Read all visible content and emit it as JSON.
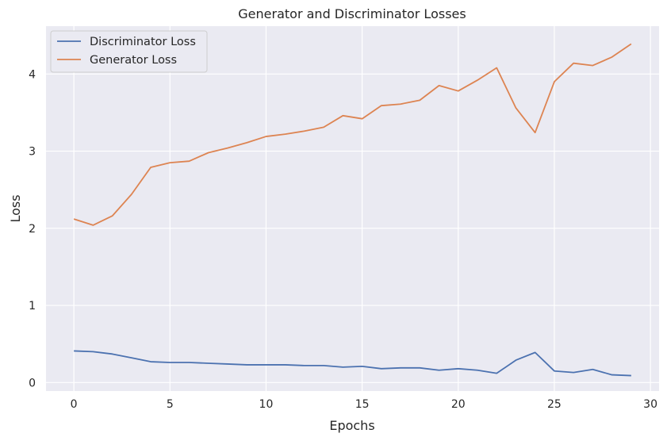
{
  "chart_data": {
    "type": "line",
    "title": "Generator and Discriminator Losses",
    "xlabel": "Epochs",
    "ylabel": "Loss",
    "xlim": [
      -1.45,
      30.45
    ],
    "ylim": [
      -0.11,
      4.62
    ],
    "xticks": [
      0,
      5,
      10,
      15,
      20,
      25,
      30
    ],
    "yticks": [
      0,
      1,
      2,
      3,
      4
    ],
    "grid": true,
    "legend_position": "top-left",
    "background": "#eaeaf2",
    "x": [
      0,
      1,
      2,
      3,
      4,
      5,
      6,
      7,
      8,
      9,
      10,
      11,
      12,
      13,
      14,
      15,
      16,
      17,
      18,
      19,
      20,
      21,
      22,
      23,
      24,
      25,
      26,
      27,
      28,
      29
    ],
    "series": [
      {
        "name": "Discriminator Loss",
        "color": "#4c72b0",
        "values": [
          0.41,
          0.4,
          0.37,
          0.32,
          0.27,
          0.26,
          0.26,
          0.25,
          0.24,
          0.23,
          0.23,
          0.23,
          0.22,
          0.22,
          0.2,
          0.21,
          0.18,
          0.19,
          0.19,
          0.16,
          0.18,
          0.16,
          0.12,
          0.29,
          0.39,
          0.15,
          0.13,
          0.17,
          0.1,
          0.09
        ]
      },
      {
        "name": "Generator Loss",
        "color": "#dd8452",
        "values": [
          2.12,
          2.04,
          2.16,
          2.44,
          2.79,
          2.85,
          2.87,
          2.98,
          3.04,
          3.11,
          3.19,
          3.22,
          3.26,
          3.31,
          3.46,
          3.42,
          3.59,
          3.61,
          3.66,
          3.85,
          3.78,
          3.92,
          4.08,
          3.56,
          3.24,
          3.9,
          4.14,
          4.11,
          4.22,
          4.39
        ]
      }
    ]
  }
}
